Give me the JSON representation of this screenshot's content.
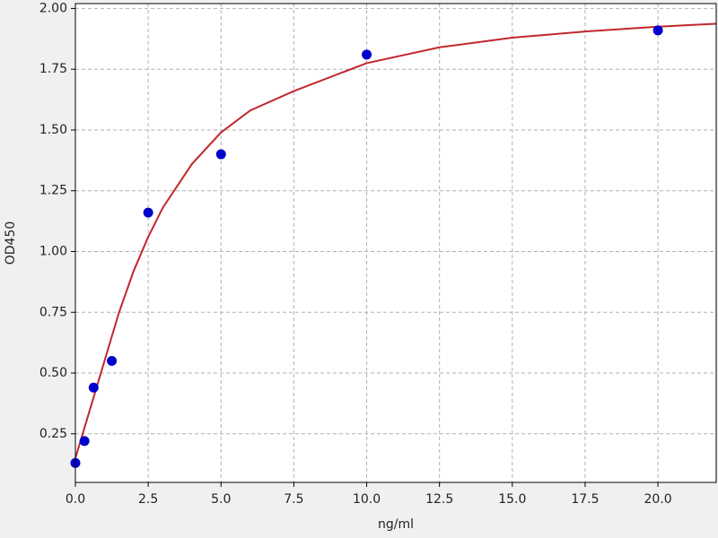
{
  "chart_data": {
    "type": "scatter",
    "xlabel": "ng/ml",
    "ylabel": "OD450",
    "xlim": [
      0,
      22
    ],
    "ylim": [
      0.05,
      2.02
    ],
    "xticks": [
      {
        "value": 0,
        "label": "0.0"
      },
      2.5,
      {
        "value": 5,
        "label": "5.0"
      },
      7.5,
      {
        "value": 10,
        "label": "10.0"
      },
      12.5,
      {
        "value": 15,
        "label": "15.0"
      },
      17.5,
      {
        "value": 20,
        "label": "20.0"
      }
    ],
    "yticks": [
      0.25,
      {
        "value": 0.5,
        "label": "0.50"
      },
      0.75,
      {
        "value": 1,
        "label": "1.00"
      },
      1.25,
      {
        "value": 1.5,
        "label": "1.50"
      },
      1.75,
      {
        "value": 2,
        "label": "2.00"
      }
    ],
    "grid": true,
    "series": [
      {
        "type": "line",
        "color": "#c0282d",
        "x": [
          0,
          0.5,
          1,
          1.5,
          2,
          2.5,
          3,
          4,
          5,
          6,
          7.5,
          10,
          12.5,
          15,
          17.5,
          20,
          22
        ],
        "values": [
          0.15,
          0.35,
          0.55,
          0.75,
          0.92,
          1.06,
          1.18,
          1.36,
          1.49,
          1.58,
          1.66,
          1.775,
          1.84,
          1.88,
          1.905,
          1.925,
          1.937
        ]
      },
      {
        "type": "scatter",
        "color": "#0000cc",
        "x": [
          0,
          0.3125,
          0.625,
          1.25,
          2.5,
          5,
          10,
          20
        ],
        "values": [
          0.13,
          0.22,
          0.44,
          0.55,
          1.16,
          1.4,
          1.81,
          1.91
        ]
      }
    ]
  }
}
